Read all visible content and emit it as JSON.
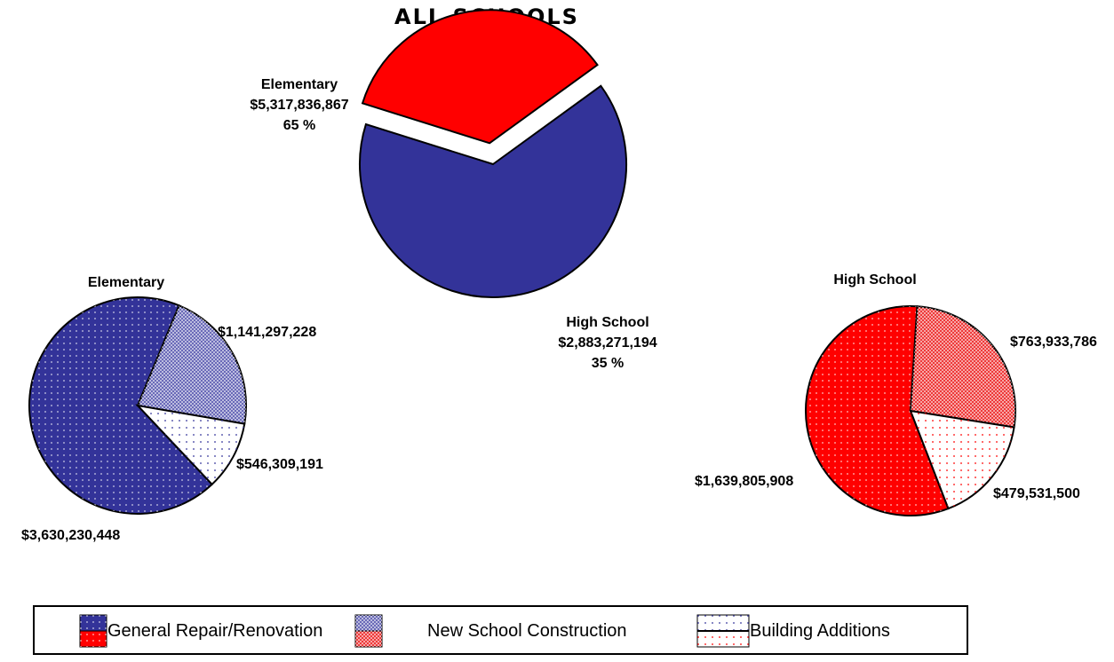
{
  "chart_data": [
    {
      "type": "pie",
      "title": "ALL SCHOOLS",
      "slices": [
        {
          "label": "Elementary",
          "value": 5317836867,
          "value_text": "$5,317,836,867",
          "percent_text": "65 %",
          "color": "#333399"
        },
        {
          "label": "High School",
          "value": 2883271194,
          "value_text": "$2,883,271,194",
          "percent_text": "35 %",
          "color": "#ff0000"
        }
      ]
    },
    {
      "type": "pie",
      "title": "Elementary",
      "slices": [
        {
          "category": "General Repair/Renovation",
          "value": 3630230448,
          "value_text": "$3,630,230,448",
          "color": "#333399"
        },
        {
          "category": "New School Construction",
          "value": 1141297228,
          "value_text": "$1,141,297,228",
          "color": "#6a6ab8"
        },
        {
          "category": "Building Additions",
          "value": 546309191,
          "value_text": "$546,309,191",
          "color": "#ffffff"
        }
      ]
    },
    {
      "type": "pie",
      "title": "High School",
      "slices": [
        {
          "category": "General Repair/Renovation",
          "value": 1639805908,
          "value_text": "$1,639,805,908",
          "color": "#ff0000"
        },
        {
          "category": "New School Construction",
          "value": 763933786,
          "value_text": "$763,933,786",
          "color": "#ee3a3a"
        },
        {
          "category": "Building Additions",
          "value": 479531500,
          "value_text": "$479,531,500",
          "color": "#ffffff"
        }
      ]
    }
  ],
  "legend": {
    "placement": "bottom",
    "items": [
      {
        "label": "General Repair/Renovation",
        "icon": "blue-red-solid-swatch"
      },
      {
        "label": "New School Construction",
        "icon": "blue-red-checkered-swatch"
      },
      {
        "label": "Building Additions",
        "icon": "white-dotted-swatch"
      }
    ]
  }
}
